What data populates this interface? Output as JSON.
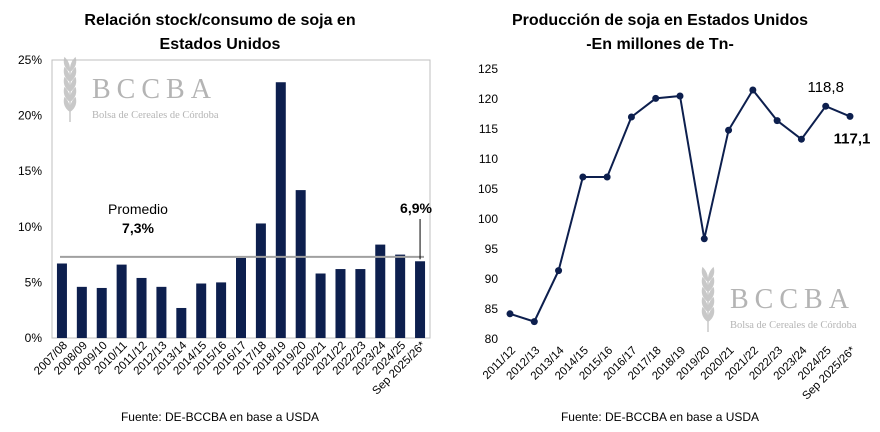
{
  "watermark": {
    "letters": "BCCBA",
    "subtitle": "Bolsa de Cereales de Córdoba"
  },
  "chart_data": [
    {
      "type": "bar",
      "title_line1": "Relación stock/consumo de soja en",
      "title_line2": "Estados Unidos",
      "categories": [
        "2007/08",
        "2008/09",
        "2009/10",
        "2010/11",
        "2011/12",
        "2012/13",
        "2013/14",
        "2014/15",
        "2015/16",
        "2016/17",
        "2017/18",
        "2018/19",
        "2019/20",
        "2020/21",
        "2021/22",
        "2022/23",
        "2023/24",
        "2024/25",
        "Sep 2025/26*"
      ],
      "values": [
        6.7,
        4.6,
        4.5,
        6.6,
        5.4,
        4.6,
        2.7,
        4.9,
        5.0,
        7.2,
        10.3,
        23.0,
        13.3,
        5.8,
        6.2,
        6.2,
        8.4,
        7.5,
        6.9
      ],
      "ylim": [
        0,
        25
      ],
      "yticks": [
        "0%",
        "5%",
        "10%",
        "15%",
        "20%",
        "25%"
      ],
      "average": {
        "value": 7.3,
        "label": "Promedio",
        "value_label": "7,3%"
      },
      "last_label": "6,9%",
      "bar_color": "#0d1f4e",
      "average_color": "#a0a0a0",
      "grid": false,
      "source": "Fuente: DE-BCCBA en base a USDA"
    },
    {
      "type": "line",
      "title_line1": "Producción de soja en Estados Unidos",
      "title_line2": "-En millones de Tn-",
      "categories": [
        "2011/12",
        "2012/13",
        "2013/14",
        "2014/15",
        "2015/16",
        "2016/17",
        "2017/18",
        "2018/19",
        "2019/20",
        "2020/21",
        "2021/22",
        "2022/23",
        "2023/24",
        "2024/25",
        "Sep 2025/26*"
      ],
      "values": [
        84.2,
        82.9,
        91.4,
        107.0,
        107.0,
        117.0,
        120.1,
        120.5,
        96.7,
        114.8,
        121.5,
        116.4,
        113.3,
        118.8,
        117.1
      ],
      "ylim": [
        80,
        125
      ],
      "yticks": [
        "80",
        "85",
        "90",
        "95",
        "100",
        "105",
        "110",
        "115",
        "120",
        "125"
      ],
      "label_2024": "118,8",
      "label_last": "117,1",
      "line_color": "#0d1f4e",
      "grid": false,
      "source": "Fuente: DE-BCCBA en base a USDA"
    }
  ]
}
